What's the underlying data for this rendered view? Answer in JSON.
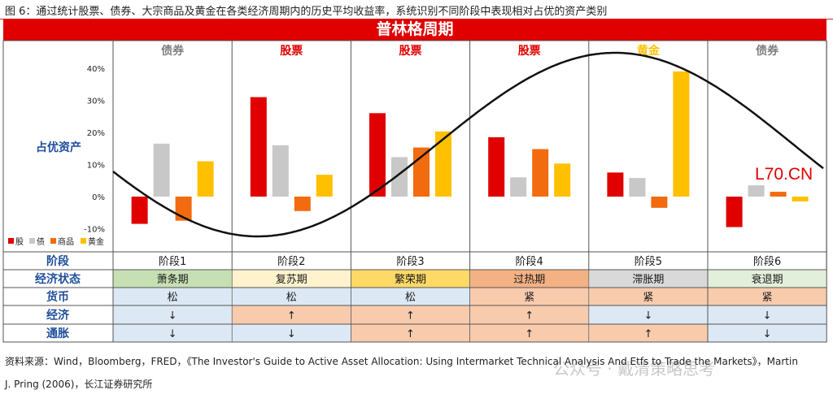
{
  "figure": {
    "title": "图 6：通过统计股票、债券、大宗商品及黄金在各类经济周期内的历史平均收益率，系统识别不同阶段中表现相对占优的资产类别",
    "banner": "普林格周期",
    "source_line1": "资料来源：Wind，Bloomberg，FRED，《The Investor's Guide to Active Asset Allocation: Using Intermarket Technical Analysis And Etfs to Trade the Markets》，Martin",
    "source_line2": "J. Pring (2006)，长江证券研究所",
    "watermark": "L70.CN",
    "watermark2": "公众号 · 戴清策略思考"
  },
  "chart_data": {
    "type": "bar",
    "ylabel": "占优资产",
    "ylim": [
      -10,
      40
    ],
    "y_ticks": [
      "40%",
      "30%",
      "20%",
      "10%",
      "0%",
      "-10%"
    ],
    "y_tick_values": [
      40,
      30,
      20,
      10,
      0,
      -10
    ],
    "legend_position": "bottom-left",
    "series": [
      {
        "name": "股",
        "color": "#e00000",
        "values": [
          -8.5,
          31,
          26,
          18.5,
          7.5,
          -9.5
        ]
      },
      {
        "name": "债",
        "color": "#c8c8c8",
        "values": [
          16.5,
          16,
          12.3,
          6,
          5.8,
          3.5
        ]
      },
      {
        "name": "商品",
        "color": "#f26b0f",
        "values": [
          -7.5,
          -4.5,
          15.3,
          14.8,
          -3.5,
          1.5
        ]
      },
      {
        "name": "黄金",
        "color": "#ffc000",
        "values": [
          11,
          6.8,
          20.3,
          10.3,
          39,
          -1.5
        ]
      }
    ],
    "stages": [
      {
        "top_asset": "债券",
        "top_color": "#7f7f7f",
        "stage": "阶段1",
        "state": "萧条期",
        "state_color": "#c6e0b4",
        "money": "松",
        "money_color": "#dce9f5",
        "economy": "↓",
        "economy_color": "#dce9f5",
        "inflation": "↓",
        "inflation_color": "#dce9f5"
      },
      {
        "top_asset": "股票",
        "top_color": "#e00000",
        "stage": "阶段2",
        "state": "复苏期",
        "state_color": "#fff2cc",
        "money": "松",
        "money_color": "#dce9f5",
        "economy": "↑",
        "economy_color": "#f8cbad",
        "inflation": "↓",
        "inflation_color": "#dce9f5"
      },
      {
        "top_asset": "股票",
        "top_color": "#e00000",
        "stage": "阶段3",
        "state": "繁荣期",
        "state_color": "#ffd966",
        "money": "松",
        "money_color": "#dce9f5",
        "economy": "↑",
        "economy_color": "#f8cbad",
        "inflation": "↑",
        "inflation_color": "#f8cbad"
      },
      {
        "top_asset": "股票",
        "top_color": "#e00000",
        "stage": "阶段4",
        "state": "过热期",
        "state_color": "#f4b183",
        "money": "紧",
        "money_color": "#f8cbad",
        "economy": "↑",
        "economy_color": "#f8cbad",
        "inflation": "↑",
        "inflation_color": "#f8cbad"
      },
      {
        "top_asset": "黄金",
        "top_color": "#ffc000",
        "stage": "阶段5",
        "state": "滞胀期",
        "state_color": "#d9d9d9",
        "money": "紧",
        "money_color": "#f8cbad",
        "economy": "↓",
        "economy_color": "#dce9f5",
        "inflation": "↑",
        "inflation_color": "#f8cbad"
      },
      {
        "top_asset": "债券",
        "top_color": "#7f7f7f",
        "stage": "阶段6",
        "state": "衰退期",
        "state_color": "#e2efda",
        "money": "紧",
        "money_color": "#f8cbad",
        "economy": "↓",
        "economy_color": "#dce9f5",
        "inflation": "↓",
        "inflation_color": "#dce9f5"
      }
    ],
    "row_labels": [
      "阶段",
      "经济状态",
      "货币",
      "经济",
      "通胀"
    ],
    "cycle_curve": "sine"
  }
}
